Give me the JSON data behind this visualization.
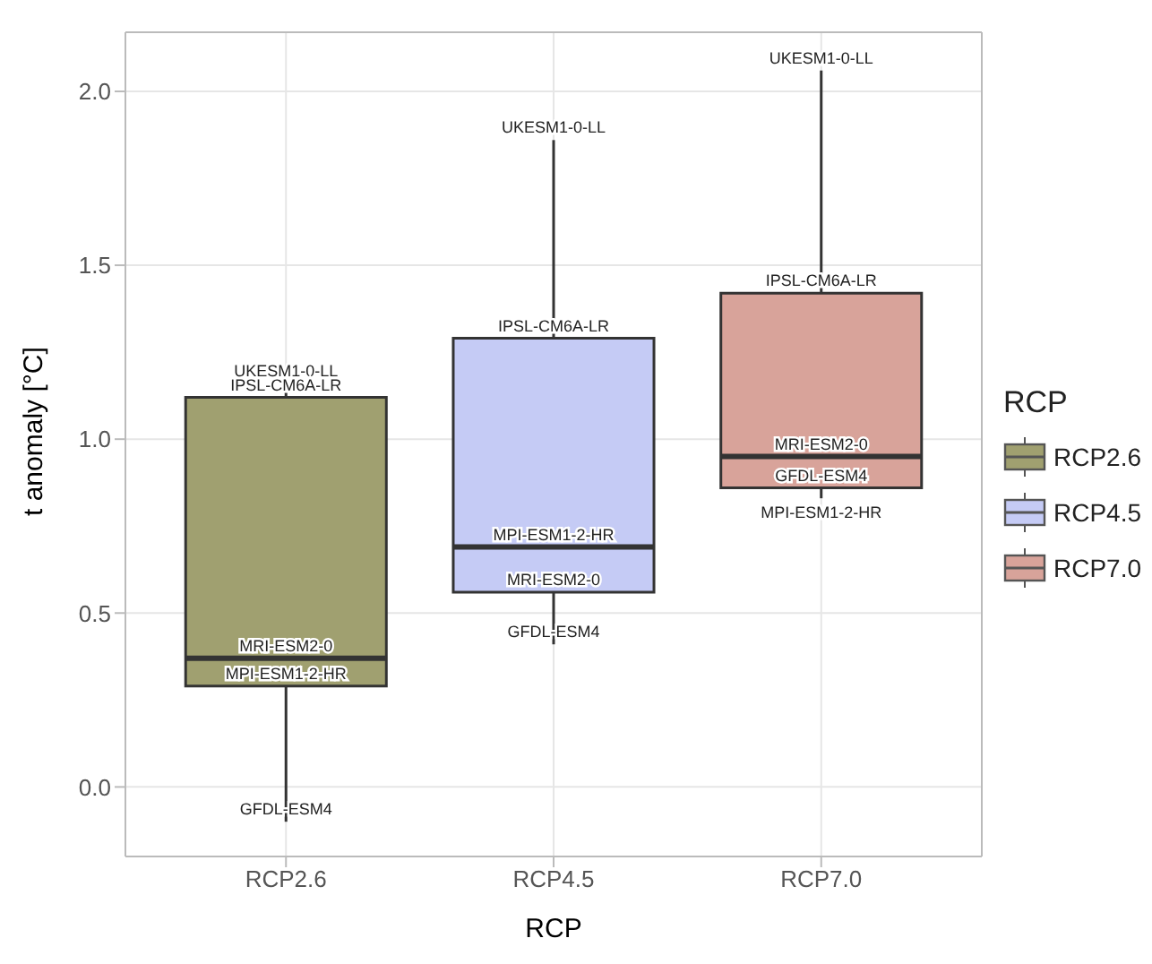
{
  "chart_data": {
    "type": "box",
    "xlabel": "RCP",
    "ylabel": "t anomaly [°C]",
    "legend_title": "RCP",
    "legend": "right",
    "grid": true,
    "categories": [
      "RCP2.6",
      "RCP4.5",
      "RCP7.0"
    ],
    "series": [
      {
        "name": "RCP2.6",
        "color": "#a0a070",
        "boxes": [
          {
            "low": -0.1,
            "q1": 0.29,
            "median": 0.37,
            "q3": 1.12,
            "high": 1.16
          },
          null,
          null
        ]
      },
      {
        "name": "RCP4.5",
        "color": "#c5cbf5",
        "boxes": [
          null,
          {
            "low": 0.41,
            "q1": 0.56,
            "median": 0.69,
            "q3": 1.29,
            "high": 1.86
          },
          null
        ]
      },
      {
        "name": "RCP7.0",
        "color": "#d8a39a",
        "boxes": [
          null,
          null,
          {
            "low": 0.83,
            "q1": 0.86,
            "median": 0.95,
            "q3": 1.42,
            "high": 2.06
          }
        ]
      }
    ],
    "ylim": [
      -0.2,
      2.17
    ],
    "yticks": [
      {
        "value": 0,
        "label": "0.0"
      },
      {
        "value": 0.5,
        "label": "0.5"
      },
      {
        "value": 1,
        "label": "1.0"
      },
      {
        "value": 1.5,
        "label": "1.5"
      },
      {
        "value": 2,
        "label": "2.0"
      }
    ],
    "annotations": [
      {
        "text": "UKESM1-0-LL",
        "x": "RCP2.6",
        "y": 1.16
      },
      {
        "text": "IPSL-CM6A-LR",
        "x": "RCP2.6",
        "y": 1.12
      },
      {
        "text": "MRI-ESM2-0",
        "x": "RCP2.6",
        "y": 0.37
      },
      {
        "text": "MPI-ESM1-2-HR",
        "x": "RCP2.6",
        "y": 0.29
      },
      {
        "text": "GFDL-ESM4",
        "x": "RCP2.6",
        "y": -0.1
      },
      {
        "text": "UKESM1-0-LL",
        "x": "RCP4.5",
        "y": 1.86
      },
      {
        "text": "IPSL-CM6A-LR",
        "x": "RCP4.5",
        "y": 1.29
      },
      {
        "text": "MPI-ESM1-2-HR",
        "x": "RCP4.5",
        "y": 0.69
      },
      {
        "text": "MRI-ESM2-0",
        "x": "RCP4.5",
        "y": 0.56
      },
      {
        "text": "GFDL-ESM4",
        "x": "RCP4.5",
        "y": 0.41
      },
      {
        "text": "UKESM1-0-LL",
        "x": "RCP7.0",
        "y": 2.06
      },
      {
        "text": "IPSL-CM6A-LR",
        "x": "RCP7.0",
        "y": 1.42
      },
      {
        "text": "MRI-ESM2-0",
        "x": "RCP7.0",
        "y": 0.95
      },
      {
        "text": "GFDL-ESM4",
        "x": "RCP7.0",
        "y": 0.86
      },
      {
        "text": "MPI-ESM1-2-HR",
        "x": "RCP7.0",
        "y": 0.83
      }
    ]
  }
}
